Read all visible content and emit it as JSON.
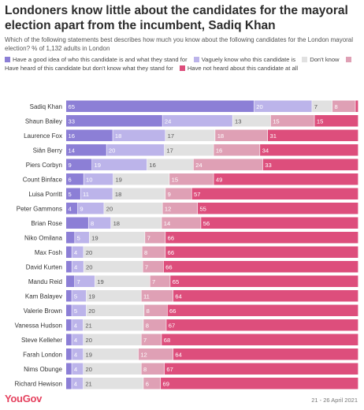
{
  "title": "Londoners know little about the candidates for the mayoral election apart from the incumbent, Sadiq Khan",
  "subtitle": "Which of the following statements best describes how much you know about the following candidates for the London mayoral election? % of 1,132 adults in London",
  "footer": {
    "brand": "YouGov",
    "date": "21 - 26 April 2021"
  },
  "chart_data": {
    "type": "bar",
    "orientation": "horizontal",
    "stacked": true,
    "categories": [
      "Sadiq Khan",
      "Shaun Bailey",
      "Laurence Fox",
      "Siân Berry",
      "Piers Corbyn",
      "Count Binface",
      "Luisa Porritt",
      "Peter Gammons",
      "Brian Rose",
      "Niko Omilana",
      "Max Fosh",
      "David Kurten",
      "Mandu Reid",
      "Kam Balayev",
      "Valerie Brown",
      "Vanessa Hudson",
      "Steve Kelleher",
      "Farah London",
      "Nims Obunge",
      "Richard Hewison"
    ],
    "series": [
      {
        "name": "Have a good idea of who this candidate is and what they stand for",
        "color": "#8c7fd6",
        "values": [
          65,
          33,
          16,
          14,
          9,
          6,
          5,
          4,
          8,
          3,
          2,
          2,
          3,
          2,
          2,
          2,
          2,
          2,
          2,
          2
        ]
      },
      {
        "name": "Vaguely know who this candidate is",
        "color": "#bcb4ea",
        "values": [
          20,
          24,
          18,
          20,
          19,
          10,
          11,
          9,
          8,
          5,
          4,
          4,
          7,
          5,
          5,
          4,
          4,
          4,
          4,
          4
        ]
      },
      {
        "name": "Don't know",
        "color": "#e1e1e1",
        "values": [
          7,
          13,
          17,
          17,
          16,
          19,
          18,
          20,
          18,
          19,
          20,
          20,
          19,
          19,
          20,
          21,
          20,
          19,
          20,
          21
        ]
      },
      {
        "name": "Have heard of this candidate but don't know what they stand for",
        "color": "#dfa0b5",
        "values": [
          8,
          15,
          18,
          16,
          24,
          15,
          9,
          12,
          14,
          7,
          8,
          7,
          7,
          11,
          8,
          8,
          7,
          12,
          8,
          6
        ]
      },
      {
        "name": "Have not heard about this candidate at all",
        "color": "#dd4e7c",
        "values": [
          1,
          15,
          31,
          34,
          33,
          49,
          57,
          55,
          56,
          66,
          66,
          66,
          65,
          64,
          66,
          67,
          68,
          64,
          67,
          69
        ]
      }
    ],
    "labels": [
      [
        "65",
        "20",
        "7",
        "8",
        ""
      ],
      [
        "33",
        "24",
        "13",
        "15",
        "15"
      ],
      [
        "16",
        "18",
        "17",
        "18",
        "31"
      ],
      [
        "14",
        "20",
        "17",
        "16",
        "34"
      ],
      [
        "9",
        "19",
        "16",
        "24",
        "33"
      ],
      [
        "6",
        "10",
        "19",
        "15",
        "49"
      ],
      [
        "5",
        "11",
        "18",
        "9",
        "57"
      ],
      [
        "4",
        "9",
        "20",
        "12",
        "55"
      ],
      [
        "",
        "8",
        "18",
        "14",
        "56"
      ],
      [
        "",
        "5",
        "19",
        "7",
        "66"
      ],
      [
        "",
        "4",
        "20",
        "8",
        "66"
      ],
      [
        "",
        "4",
        "20",
        "7",
        "66"
      ],
      [
        "",
        "7",
        "19",
        "7",
        "65"
      ],
      [
        "",
        "5",
        "19",
        "11",
        "64"
      ],
      [
        "",
        "5",
        "20",
        "8",
        "66"
      ],
      [
        "",
        "4",
        "21",
        "8",
        "67"
      ],
      [
        "",
        "4",
        "20",
        "7",
        "68"
      ],
      [
        "",
        "4",
        "19",
        "12",
        "64"
      ],
      [
        "",
        "4",
        "20",
        "8",
        "67"
      ],
      [
        "",
        "4",
        "21",
        "6",
        "69"
      ]
    ],
    "xlim": [
      0,
      100
    ]
  }
}
